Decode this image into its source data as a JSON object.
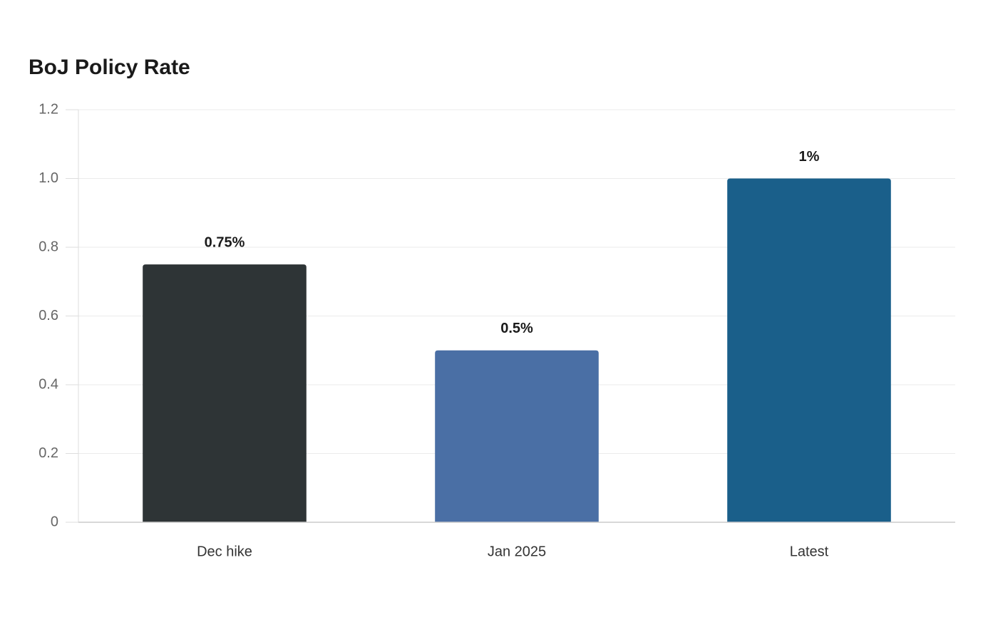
{
  "chart_data": {
    "type": "bar",
    "title": "BoJ Policy Rate",
    "categories": [
      "Dec hike",
      "Jan 2025",
      "Latest"
    ],
    "values": [
      0.75,
      0.5,
      1
    ],
    "value_labels": [
      "0.75%",
      "0.5%",
      "1%"
    ],
    "colors": [
      "#2e3436",
      "#4a6fa5",
      "#1a5f8a"
    ],
    "ylim": [
      0,
      1.2
    ],
    "yticks": [
      0,
      0.2,
      0.4,
      0.6,
      0.8,
      {
        "value": 1,
        "label": "1.0"
      },
      1.2
    ],
    "grid": true
  }
}
